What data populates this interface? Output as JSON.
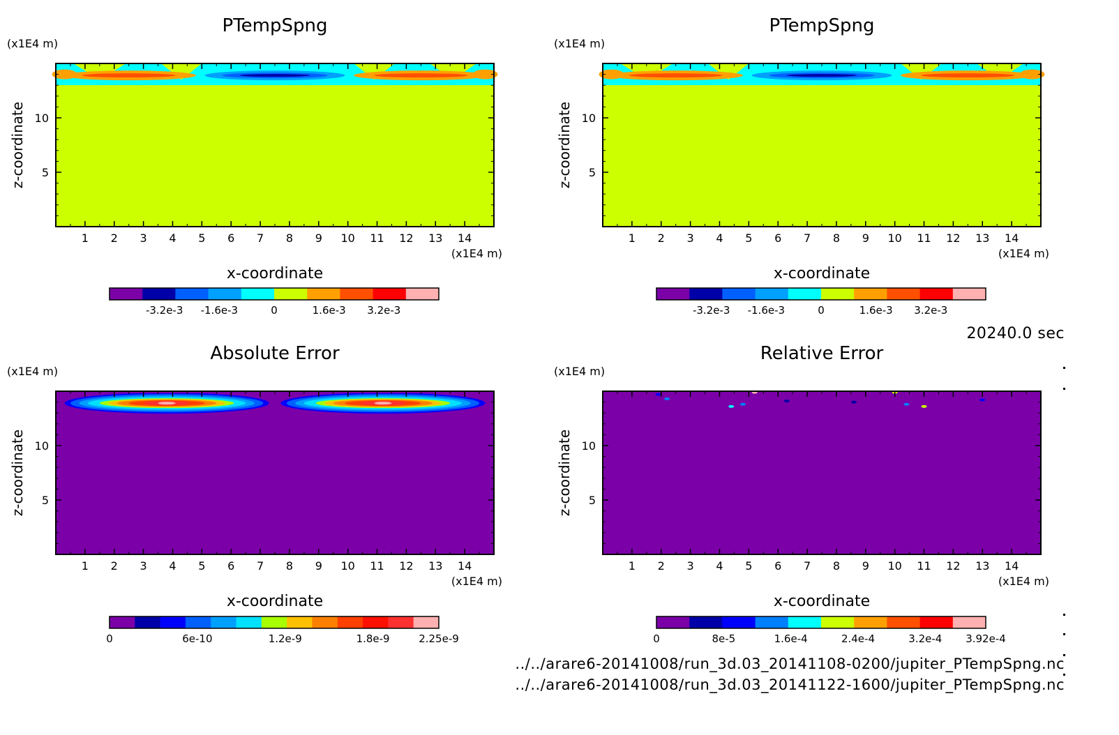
{
  "time_label": "20240.0 sec",
  "files": [
    "../../arare6-20141008/run_3d.03_20141108-0200/jupiter_PTempSpng.nc",
    "../../arare6-20141008/run_3d.03_20141122-1600/jupiter_PTempSpng.nc"
  ],
  "chart_data": [
    {
      "type": "heatmap",
      "title": "PTempSpng",
      "xlabel": "x-coordinate",
      "ylabel": "z-coordinate",
      "x_unit": "(x1E4 m)",
      "y_unit": "(x1E4 m)",
      "x_ticks": [
        1,
        2,
        3,
        4,
        5,
        6,
        7,
        8,
        9,
        10,
        11,
        12,
        13,
        14
      ],
      "y_ticks": [
        5,
        10
      ],
      "xlim": [
        0,
        15
      ],
      "ylim": [
        0,
        15
      ],
      "field": "ptemp",
      "colorbar": {
        "colors": [
          "#7b00a8",
          "#0000a8",
          "#0060ff",
          "#00a0ff",
          "#00ffff",
          "#ccff00",
          "#ffa000",
          "#ff5000",
          "#ff0000",
          "#ffb0b0"
        ],
        "tick_labels": [
          "-3.2e-3",
          "-1.6e-3",
          "0",
          "1.6e-3",
          "3.2e-3"
        ],
        "tick_values": [
          -0.0032,
          -0.0016,
          0,
          0.0016,
          0.0032
        ]
      }
    },
    {
      "type": "heatmap",
      "title": "PTempSpng",
      "xlabel": "x-coordinate",
      "ylabel": "z-coordinate",
      "x_unit": "(x1E4 m)",
      "y_unit": "(x1E4 m)",
      "x_ticks": [
        1,
        2,
        3,
        4,
        5,
        6,
        7,
        8,
        9,
        10,
        11,
        12,
        13,
        14
      ],
      "y_ticks": [
        5,
        10
      ],
      "xlim": [
        0,
        15
      ],
      "ylim": [
        0,
        15
      ],
      "field": "ptemp",
      "colorbar": {
        "colors": [
          "#7b00a8",
          "#0000a8",
          "#0060ff",
          "#00a0ff",
          "#00ffff",
          "#ccff00",
          "#ffa000",
          "#ff5000",
          "#ff0000",
          "#ffb0b0"
        ],
        "tick_labels": [
          "-3.2e-3",
          "-1.6e-3",
          "0",
          "1.6e-3",
          "3.2e-3"
        ],
        "tick_values": [
          -0.0032,
          -0.0016,
          0,
          0.0016,
          0.0032
        ]
      }
    },
    {
      "type": "heatmap",
      "title": "Absolute Error",
      "xlabel": "x-coordinate",
      "ylabel": "z-coordinate",
      "x_unit": "(x1E4 m)",
      "y_unit": "(x1E4 m)",
      "x_ticks": [
        1,
        2,
        3,
        4,
        5,
        6,
        7,
        8,
        9,
        10,
        11,
        12,
        13,
        14
      ],
      "y_ticks": [
        5,
        10
      ],
      "xlim": [
        0,
        15
      ],
      "ylim": [
        0,
        15
      ],
      "field": "abs",
      "colorbar": {
        "colors": [
          "#7b00a8",
          "#0000a8",
          "#0000ff",
          "#0060ff",
          "#00a0ff",
          "#00e0ff",
          "#a8ff00",
          "#ffc000",
          "#ff8000",
          "#ff4000",
          "#ff1000",
          "#ff3030",
          "#ffb0b0"
        ],
        "tick_labels": [
          "0",
          "6e-10",
          "1.2e-9",
          "1.8e-9",
          "2.25e-9"
        ],
        "tick_values": [
          0,
          6e-10,
          1.2e-09,
          1.8e-09,
          2.25e-09
        ]
      }
    },
    {
      "type": "heatmap",
      "title": "Relative Error",
      "xlabel": "x-coordinate",
      "ylabel": "z-coordinate",
      "x_unit": "(x1E4 m)",
      "y_unit": "(x1E4 m)",
      "x_ticks": [
        1,
        2,
        3,
        4,
        5,
        6,
        7,
        8,
        9,
        10,
        11,
        12,
        13,
        14
      ],
      "y_ticks": [
        5,
        10
      ],
      "xlim": [
        0,
        15
      ],
      "ylim": [
        0,
        15
      ],
      "field": "rel",
      "colorbar": {
        "colors": [
          "#7b00a8",
          "#0000a8",
          "#0000ff",
          "#0080ff",
          "#00ffff",
          "#ccff00",
          "#ffa000",
          "#ff5000",
          "#ff0000",
          "#ffb0b0"
        ],
        "tick_labels": [
          "0",
          "8e-5",
          "1.6e-4",
          "2.4e-4",
          "3.2e-4",
          "3.92e-4"
        ],
        "tick_values": [
          0,
          8e-05,
          0.00016,
          0.00024,
          0.00032,
          0.000392
        ]
      }
    }
  ]
}
